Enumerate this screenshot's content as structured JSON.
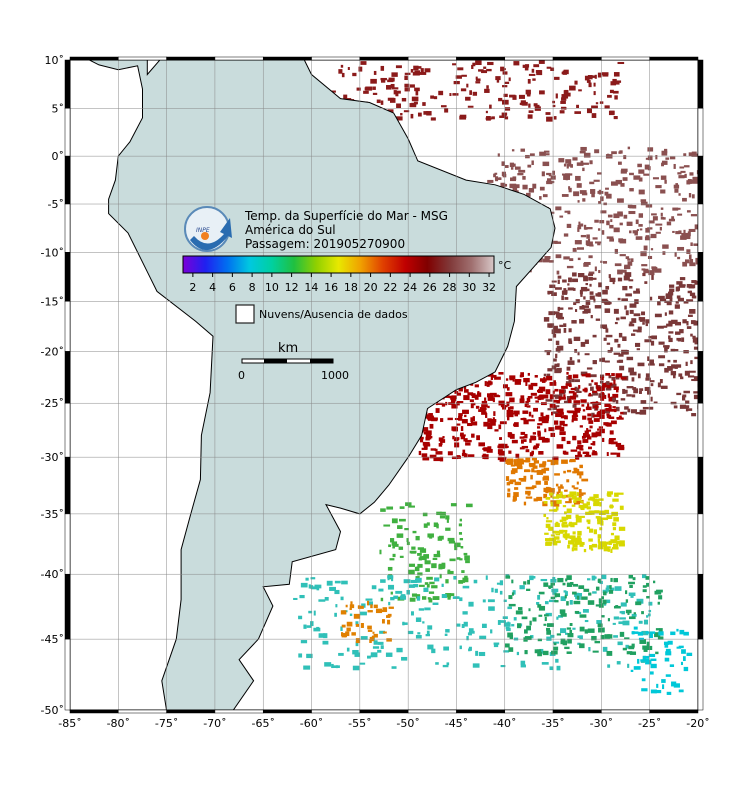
{
  "map": {
    "title_lines": [
      "Temp. da Superfície do Mar - MSG",
      "América do Sul",
      "Passagem: 201905270900"
    ],
    "logo_text": "INPE",
    "lonlim": [
      -85,
      -20
    ],
    "latlim": [
      -50,
      10
    ],
    "lon_ticks": [
      {
        "value": -85,
        "label": "-85˚"
      },
      {
        "value": -80,
        "label": "-80˚"
      },
      {
        "value": -75,
        "label": "-75˚"
      },
      {
        "value": -70,
        "label": "-70˚"
      },
      {
        "value": -65,
        "label": "-65˚"
      },
      {
        "value": -60,
        "label": "-60˚"
      },
      {
        "value": -55,
        "label": "-55˚"
      },
      {
        "value": -50,
        "label": "-50˚"
      },
      {
        "value": -45,
        "label": "-45˚"
      },
      {
        "value": -40,
        "label": "-40˚"
      },
      {
        "value": -35,
        "label": "-35˚"
      },
      {
        "value": -30,
        "label": "-30˚"
      },
      {
        "value": -25,
        "label": "-25˚"
      },
      {
        "value": -20,
        "label": "-20˚"
      }
    ],
    "lat_ticks": [
      {
        "value": 10,
        "label": "10˚"
      },
      {
        "value": 5,
        "label": "5˚"
      },
      {
        "value": 0,
        "label": "0˚"
      },
      {
        "value": -5,
        "label": "-5˚"
      },
      {
        "value": -10,
        "label": "-10˚"
      },
      {
        "value": -15,
        "label": "-15˚"
      },
      {
        "value": -20,
        "label": "-20˚"
      },
      {
        "value": -25,
        "label": "-25˚"
      },
      {
        "value": -30,
        "label": "-30˚"
      },
      {
        "value": -35,
        "label": "-35˚"
      },
      {
        "value": -40,
        "label": "-40˚"
      },
      {
        "value": -45,
        "label": "-45˚"
      },
      {
        "value": -50,
        "label": "-50˚"
      }
    ],
    "colorbar": {
      "unit": "°C",
      "range": [
        1,
        32.5
      ],
      "ticks": [
        2,
        4,
        6,
        8,
        10,
        12,
        14,
        16,
        18,
        20,
        22,
        24,
        26,
        28,
        30,
        32
      ],
      "colors": [
        "#7a00d8",
        "#2020f0",
        "#0070f0",
        "#00c8e0",
        "#00d0a0",
        "#20c040",
        "#90d000",
        "#e8e800",
        "#f0a000",
        "#e04000",
        "#c00000",
        "#800000",
        "#803838",
        "#a07070",
        "#d8c8c8"
      ]
    },
    "legend": "Nuvens/Ausencia de dados",
    "scale": {
      "unit": "km",
      "start": "0",
      "end": "1000"
    }
  }
}
